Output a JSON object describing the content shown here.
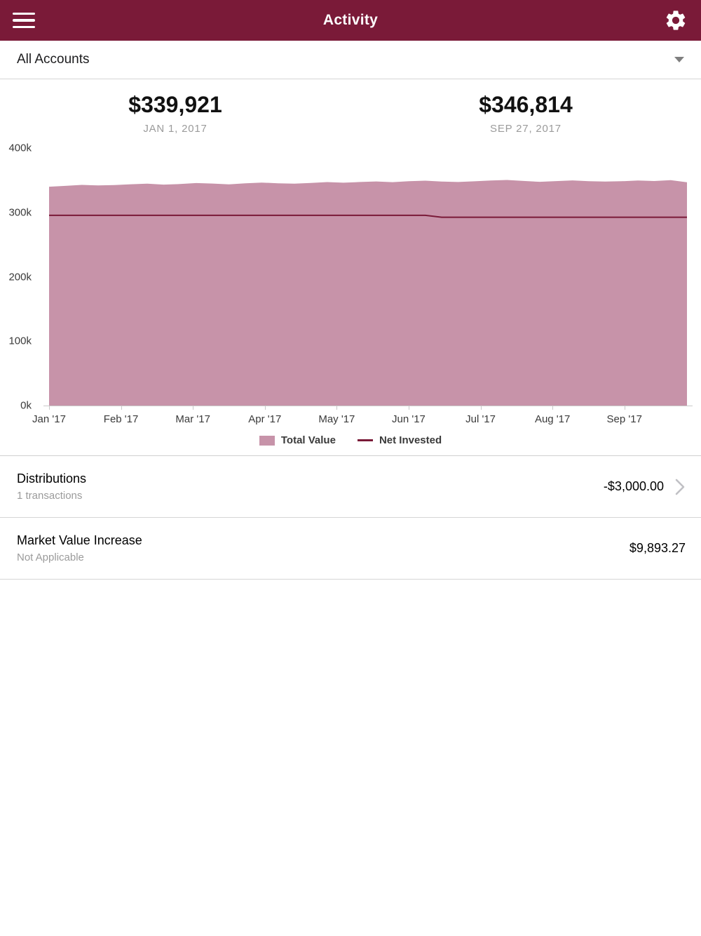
{
  "header": {
    "title": "Activity"
  },
  "account_selector": {
    "label": "All Accounts"
  },
  "summary": {
    "start": {
      "value": "$339,921",
      "date": "JAN 1, 2017"
    },
    "end": {
      "value": "$346,814",
      "date": "SEP 27, 2017"
    }
  },
  "chart_data": {
    "type": "area",
    "title": "",
    "ylim": [
      0,
      400000
    ],
    "y_tick_labels": [
      "400k",
      "300k",
      "200k",
      "100k",
      "0k"
    ],
    "x_labels": [
      "Jan '17",
      "Feb '17",
      "Mar '17",
      "Apr '17",
      "May '17",
      "Jun '17",
      "Jul '17",
      "Aug '17",
      "Sep '17"
    ],
    "x_range_months": 8.87,
    "grid": false,
    "legend_position": "bottom",
    "series": [
      {
        "name": "Total Value",
        "type": "area",
        "color": "#c793a9",
        "values": [
          339921,
          341200,
          342800,
          341900,
          342500,
          343800,
          344600,
          343200,
          344100,
          345600,
          344800,
          343700,
          345200,
          346400,
          345300,
          344600,
          345800,
          347100,
          346200,
          347300,
          348100,
          347000,
          348400,
          349300,
          348000,
          347200,
          348300,
          349600,
          350400,
          348900,
          347600,
          348700,
          349800,
          348600,
          347900,
          348500,
          349700,
          348800,
          350100,
          346814
        ]
      },
      {
        "name": "Net Invested",
        "type": "line",
        "color": "#7a1a38",
        "values": [
          295500,
          295500,
          295500,
          295500,
          295500,
          295500,
          295500,
          295500,
          295500,
          295500,
          295500,
          295500,
          295500,
          295500,
          295500,
          295500,
          295500,
          295500,
          295500,
          295500,
          295500,
          295500,
          295500,
          295500,
          292500,
          292500,
          292500,
          292500,
          292500,
          292500,
          292500,
          292500,
          292500,
          292500,
          292500,
          292500,
          292500,
          292500,
          292500,
          292500
        ]
      }
    ]
  },
  "rows": [
    {
      "title": "Distributions",
      "subtitle": "1 transactions",
      "amount": "-$3,000.00",
      "has_chevron": true
    },
    {
      "title": "Market Value Increase",
      "subtitle": "Not Applicable",
      "amount": "$9,893.27",
      "has_chevron": false
    }
  ],
  "colors": {
    "header_bg": "#7a1a38",
    "area_fill": "#c793a9",
    "net_line": "#7a1a38",
    "divider": "#d6d6d6"
  }
}
